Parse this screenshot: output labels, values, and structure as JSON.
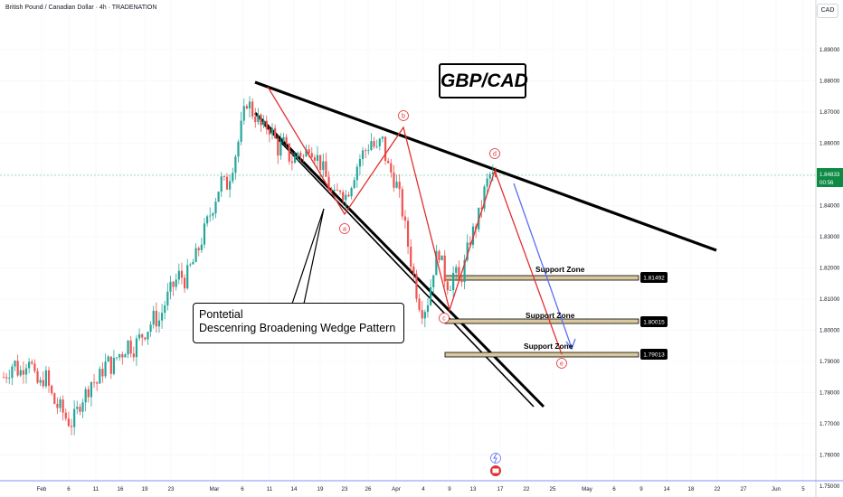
{
  "header": {
    "symbol": "British Pound / Canadian Dollar · 4h · TRADENATION",
    "currency_button": "CAD"
  },
  "annotations": {
    "title": "GBP/CAD",
    "callout_line1": "Pontetial",
    "callout_line2": "Descenring Broadening Wedge Pattern"
  },
  "colors": {
    "up": "#26a69a",
    "down": "#ef5350",
    "wave": "#e03131",
    "projection": "#5b6ef5",
    "current_price_bg": "#0d8a44",
    "price_line": "#8fd3a7"
  },
  "chart_data": {
    "type": "candlestick",
    "timeframe": "4h",
    "y_axis": {
      "ticks": [
        1.89,
        1.88,
        1.87,
        1.86,
        1.85,
        1.84,
        1.83,
        1.82,
        1.81,
        1.8,
        1.79,
        1.78,
        1.77,
        1.76,
        1.75
      ],
      "tick_labels": [
        "1.89000",
        "1.88000",
        "1.87000",
        "1.86000",
        "1.85000",
        "1.84000",
        "1.83000",
        "1.82000",
        "1.81000",
        "1.80000",
        "1.79000",
        "1.78000",
        "1.77000",
        "1.76000",
        "1.75000"
      ],
      "ylim": [
        1.748,
        1.895
      ]
    },
    "x_axis": {
      "tick_labels": [
        "Feb",
        "6",
        "11",
        "16",
        "19",
        "23",
        "Mar",
        "6",
        "11",
        "14",
        "19",
        "23",
        "26",
        "Apr",
        "4",
        "9",
        "13",
        "17",
        "22",
        "25",
        "May",
        "6",
        "9",
        "14",
        "18",
        "22",
        "27",
        "Jun",
        "5"
      ]
    },
    "current_price": "1.84833",
    "countdown": "00:56",
    "support_zones": [
      {
        "label": "Support Zone",
        "price": "1.81492"
      },
      {
        "label": "Support Zone",
        "price": "1.80015"
      },
      {
        "label": "Support Zone",
        "price": "1.79013"
      }
    ],
    "wave_labels": [
      "a",
      "b",
      "c",
      "d",
      "e"
    ],
    "close_path": [
      1.785,
      1.787,
      1.79,
      1.786,
      1.789,
      1.792,
      1.784,
      1.782,
      1.786,
      1.78,
      1.776,
      1.775,
      1.772,
      1.77,
      1.773,
      1.778,
      1.78,
      1.784,
      1.783,
      1.787,
      1.79,
      1.788,
      1.792,
      1.793,
      1.796,
      1.794,
      1.797,
      1.799,
      1.801,
      1.804,
      1.803,
      1.808,
      1.812,
      1.815,
      1.818,
      1.816,
      1.82,
      1.823,
      1.828,
      1.833,
      1.838,
      1.843,
      1.848,
      1.846,
      1.852,
      1.858,
      1.866,
      1.874,
      1.87,
      1.868,
      1.864,
      1.866,
      1.863,
      1.858,
      1.86,
      1.856,
      1.854,
      1.858,
      1.855,
      1.86,
      1.857,
      1.854,
      1.85,
      1.845,
      1.842,
      1.846,
      1.843,
      1.847,
      1.852,
      1.856,
      1.858,
      1.861,
      1.857,
      1.862,
      1.853,
      1.85,
      1.846,
      1.838,
      1.828,
      1.819,
      1.81,
      1.806,
      1.81,
      1.82,
      1.826,
      1.818,
      1.814,
      1.819,
      1.815,
      1.821,
      1.829,
      1.833,
      1.838,
      1.846,
      1.85,
      1.848
    ]
  }
}
